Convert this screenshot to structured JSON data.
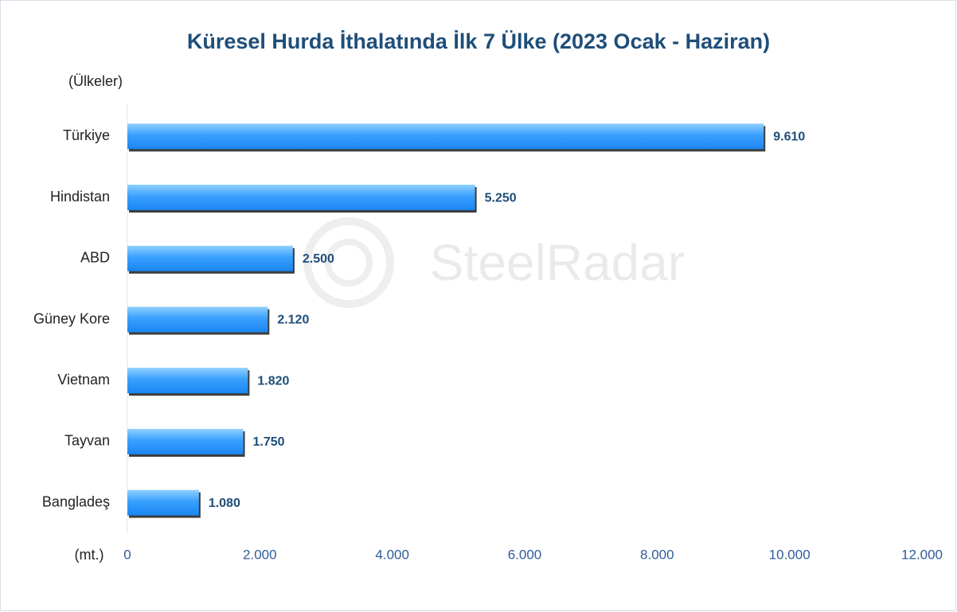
{
  "chart_data": {
    "type": "bar",
    "orientation": "horizontal",
    "title": "Küresel Hurda İthalatında İlk 7 Ülke (2023 Ocak - Haziran)",
    "y_label": "(Ülkeler)",
    "x_label": "(mt.)",
    "watermark": "SteelRadar",
    "categories": [
      "Türkiye",
      "Hindistan",
      "ABD",
      "Güney Kore",
      "Vietnam",
      "Tayvan",
      "Bangladeş"
    ],
    "values": [
      9610,
      5250,
      2500,
      2120,
      1820,
      1750,
      1080
    ],
    "value_labels": [
      "9.610",
      "5.250",
      "2.500",
      "2.120",
      "1.820",
      "1.750",
      "1.080"
    ],
    "color": "#1a86f2",
    "xlim": [
      0,
      12000
    ],
    "xticks": [
      0,
      {
        "value": 2000,
        "label": "2.000"
      },
      {
        "value": 4000,
        "label": "4.000"
      },
      {
        "value": 6000,
        "label": "6.000"
      },
      {
        "value": 8000,
        "label": "8.000"
      },
      {
        "value": 10000,
        "label": "10.000"
      },
      {
        "value": 12000,
        "label": "12.000"
      }
    ],
    "grid": false
  }
}
